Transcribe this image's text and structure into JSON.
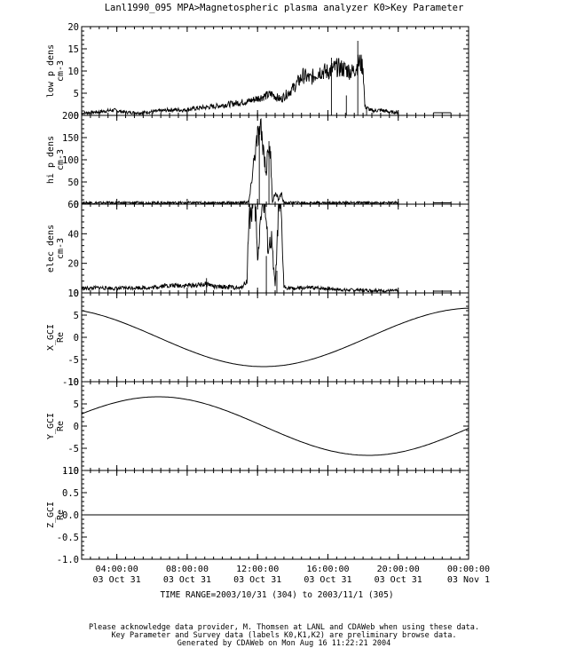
{
  "title": "Lanl1990_095  MPA>Magnetospheric plasma analyzer  K0>Key Parameter",
  "time_range": "TIME RANGE=2003/10/31 (304) to 2003/11/1 (305)",
  "footer": [
    "Please acknowledge data provider, M. Thomsen at LANL and CDAWeb when using these data.",
    "Key Parameter and Survey data (labels K0,K1,K2) are preliminary browse data.",
    "Generated by CDAWeb on Mon Aug 16 11:22:21 2004"
  ],
  "chart_data": {
    "type": "line",
    "x_axis": {
      "range_hours": [
        2,
        24
      ],
      "ticks": [
        {
          "hour": 4,
          "time": "04:00:00",
          "date": "03 Oct 31"
        },
        {
          "hour": 8,
          "time": "08:00:00",
          "date": "03 Oct 31"
        },
        {
          "hour": 12,
          "time": "12:00:00",
          "date": "03 Oct 31"
        },
        {
          "hour": 16,
          "time": "16:00:00",
          "date": "03 Oct 31"
        },
        {
          "hour": 20,
          "time": "20:00:00",
          "date": "03 Oct 31"
        },
        {
          "hour": 24,
          "time": "00:00:00",
          "date": "03 Nov  1"
        }
      ]
    },
    "panels": [
      {
        "ylabel": "low p dens",
        "unit": "cm-3",
        "ylim": [
          0,
          20
        ],
        "yticks": [
          0,
          5,
          10,
          15,
          20
        ],
        "points": [
          [
            2,
            0.5
          ],
          [
            3,
            0.8
          ],
          [
            3.8,
            1.2
          ],
          [
            4.5,
            0.7
          ],
          [
            5.3,
            0.6
          ],
          [
            6.2,
            0.9
          ],
          [
            7.2,
            1.3
          ],
          [
            7.8,
            1.2
          ],
          [
            8.5,
            1.6
          ],
          [
            9.5,
            2.0
          ],
          [
            10.5,
            2.6
          ],
          [
            11.5,
            3.2
          ],
          [
            12.2,
            4.1
          ],
          [
            12.8,
            4.8
          ],
          [
            13.3,
            3.6
          ],
          [
            14.0,
            6.0
          ],
          [
            14.6,
            9.0
          ],
          [
            15.0,
            8.2
          ],
          [
            15.5,
            10.0
          ],
          [
            16.0,
            9.8
          ],
          [
            16.5,
            10.8
          ],
          [
            17.0,
            10.4
          ],
          [
            17.4,
            9.8
          ],
          [
            17.8,
            12.0
          ],
          [
            18.0,
            11.0
          ],
          [
            18.1,
            2.0
          ],
          [
            18.5,
            1.0
          ],
          [
            19.0,
            1.2
          ],
          [
            19.6,
            0.7
          ],
          [
            20.0,
            0.7
          ]
        ],
        "segments_after": [
          [
            [
              22.0,
              0.6
            ],
            [
              23.0,
              0.6
            ]
          ]
        ],
        "spikes": [
          [
            16.2,
            13.0
          ],
          [
            17.05,
            4.5
          ],
          [
            17.7,
            16.8
          ],
          [
            18.2,
            1.6
          ]
        ]
      },
      {
        "ylabel": "hi p dens",
        "unit": "cm-3",
        "ylim": [
          0,
          200
        ],
        "yticks": [
          0,
          50,
          100,
          150,
          200
        ],
        "points": [
          [
            2,
            3
          ],
          [
            4,
            3
          ],
          [
            6,
            3
          ],
          [
            8,
            3
          ],
          [
            10,
            3
          ],
          [
            11.0,
            3
          ],
          [
            11.5,
            5
          ],
          [
            11.6,
            30
          ],
          [
            11.8,
            100
          ],
          [
            12.0,
            150
          ],
          [
            12.2,
            165
          ],
          [
            12.35,
            120
          ],
          [
            12.5,
            70
          ],
          [
            12.6,
            130
          ],
          [
            12.75,
            105
          ],
          [
            12.85,
            5
          ],
          [
            13.0,
            25
          ],
          [
            13.2,
            10
          ],
          [
            13.35,
            25
          ],
          [
            13.5,
            3
          ],
          [
            14,
            3
          ],
          [
            16,
            3
          ],
          [
            18,
            3
          ],
          [
            20,
            3
          ]
        ],
        "segments_after": [
          [
            [
              22.0,
              3
            ],
            [
              23.0,
              3
            ]
          ]
        ],
        "spikes": [
          [
            12.1,
            172
          ],
          [
            12.65,
            142
          ]
        ]
      },
      {
        "ylabel": "elec dens",
        "unit": "cm-3",
        "ylim": [
          0,
          60
        ],
        "yticks": [
          0,
          20,
          40,
          60
        ],
        "points": [
          [
            2,
            3
          ],
          [
            3,
            3.5
          ],
          [
            4,
            3
          ],
          [
            5,
            3.6
          ],
          [
            6,
            3.5
          ],
          [
            6.7,
            5
          ],
          [
            7.5,
            5
          ],
          [
            8.5,
            5.2
          ],
          [
            9.2,
            6
          ],
          [
            9.6,
            4
          ],
          [
            10.5,
            4
          ],
          [
            11.0,
            3
          ],
          [
            11.4,
            8
          ],
          [
            11.5,
            50
          ],
          [
            11.7,
            58
          ],
          [
            11.9,
            56
          ],
          [
            12.0,
            20
          ],
          [
            12.2,
            58
          ],
          [
            12.4,
            60
          ],
          [
            12.6,
            30
          ],
          [
            12.8,
            35
          ],
          [
            13.0,
            4
          ],
          [
            13.2,
            55
          ],
          [
            13.35,
            52
          ],
          [
            13.5,
            4
          ],
          [
            14.0,
            3
          ],
          [
            15.0,
            3.5
          ],
          [
            16.0,
            3
          ],
          [
            17.0,
            2
          ],
          [
            18.0,
            2
          ],
          [
            19.0,
            1.5
          ],
          [
            20.0,
            1.5
          ]
        ],
        "segments_after": [
          [
            [
              22.0,
              1.2
            ],
            [
              23.0,
              1.2
            ]
          ]
        ],
        "spikes": [
          [
            9.1,
            10
          ],
          [
            12.5,
            25
          ],
          [
            13.1,
            15
          ]
        ]
      },
      {
        "ylabel": "X_GCI",
        "unit": "Re",
        "ylim": [
          -10,
          10
        ],
        "yticks": [
          -10,
          -5,
          0,
          5,
          10
        ],
        "curve": {
          "amplitude": 6.6,
          "phase_hours": -1.3,
          "period_hours": 23.93,
          "func": "cos"
        }
      },
      {
        "ylabel": "Y_GCI",
        "unit": "Re",
        "ylim": [
          -10,
          10
        ],
        "yticks": [
          -10,
          -5,
          0,
          5,
          10
        ],
        "curve": {
          "amplitude": 6.6,
          "phase_hours": -1.3,
          "period_hours": 23.93,
          "func": "sin"
        }
      },
      {
        "ylabel": "Z_GCI",
        "unit": "Re",
        "ylim": [
          -1.0,
          1.0
        ],
        "yticks": [
          -1.0,
          -0.5,
          0.0,
          0.5,
          1.0
        ],
        "ytick_labels": [
          "-1.0",
          "-0.5",
          "0.0",
          "0.5",
          "1.0"
        ],
        "constant": 0.0
      }
    ]
  }
}
